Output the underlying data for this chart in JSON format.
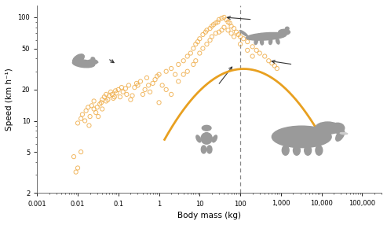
{
  "xlabel": "Body mass (kg)",
  "ylabel": "Speed (km h⁻¹)",
  "xlim": [
    0.001,
    300000
  ],
  "ylim": [
    2,
    130
  ],
  "dashed_x": 100,
  "curve_color": "#e8a020",
  "scatter_color": "#f0b050",
  "scatter_points": [
    [
      0.01,
      9.5
    ],
    [
      0.012,
      10.5
    ],
    [
      0.013,
      11.5
    ],
    [
      0.015,
      10.0
    ],
    [
      0.016,
      12.5
    ],
    [
      0.018,
      13.5
    ],
    [
      0.019,
      9.0
    ],
    [
      0.02,
      11.0
    ],
    [
      0.022,
      14.0
    ],
    [
      0.025,
      13.0
    ],
    [
      0.025,
      15.5
    ],
    [
      0.028,
      12.0
    ],
    [
      0.03,
      13.5
    ],
    [
      0.032,
      11.0
    ],
    [
      0.035,
      14.5
    ],
    [
      0.038,
      15.0
    ],
    [
      0.04,
      16.0
    ],
    [
      0.04,
      13.0
    ],
    [
      0.045,
      17.0
    ],
    [
      0.05,
      15.5
    ],
    [
      0.05,
      18.0
    ],
    [
      0.055,
      16.0
    ],
    [
      0.06,
      17.5
    ],
    [
      0.065,
      19.0
    ],
    [
      0.07,
      18.0
    ],
    [
      0.075,
      16.5
    ],
    [
      0.08,
      17.0
    ],
    [
      0.085,
      19.5
    ],
    [
      0.09,
      18.5
    ],
    [
      0.1,
      20.0
    ],
    [
      0.11,
      17.0
    ],
    [
      0.12,
      21.0
    ],
    [
      0.13,
      19.0
    ],
    [
      0.15,
      20.5
    ],
    [
      0.16,
      18.0
    ],
    [
      0.18,
      22.0
    ],
    [
      0.2,
      16.0
    ],
    [
      0.22,
      17.5
    ],
    [
      0.25,
      21.0
    ],
    [
      0.28,
      23.0
    ],
    [
      0.3,
      22.0
    ],
    [
      0.35,
      24.0
    ],
    [
      0.4,
      18.0
    ],
    [
      0.45,
      20.0
    ],
    [
      0.5,
      26.0
    ],
    [
      0.55,
      22.0
    ],
    [
      0.6,
      19.0
    ],
    [
      0.7,
      23.0
    ],
    [
      0.8,
      25.0
    ],
    [
      0.9,
      27.0
    ],
    [
      1.0,
      15.0
    ],
    [
      1.0,
      28.0
    ],
    [
      1.2,
      22.0
    ],
    [
      1.5,
      30.0
    ],
    [
      1.5,
      20.0
    ],
    [
      2.0,
      32.0
    ],
    [
      2.0,
      18.0
    ],
    [
      2.5,
      28.0
    ],
    [
      3.0,
      35.0
    ],
    [
      3.0,
      24.0
    ],
    [
      4.0,
      38.0
    ],
    [
      4.0,
      28.0
    ],
    [
      5.0,
      42.0
    ],
    [
      5.0,
      30.0
    ],
    [
      6.0,
      45.0
    ],
    [
      7.0,
      50.0
    ],
    [
      7.0,
      35.0
    ],
    [
      8.0,
      55.0
    ],
    [
      8.0,
      38.0
    ],
    [
      9.0,
      58.0
    ],
    [
      10.0,
      62.0
    ],
    [
      10.0,
      45.0
    ],
    [
      12.0,
      68.0
    ],
    [
      12.0,
      50.0
    ],
    [
      14.0,
      72.0
    ],
    [
      15.0,
      75.0
    ],
    [
      15.0,
      55.0
    ],
    [
      18.0,
      78.0
    ],
    [
      18.0,
      60.0
    ],
    [
      20.0,
      82.0
    ],
    [
      20.0,
      65.0
    ],
    [
      22.0,
      85.0
    ],
    [
      25.0,
      88.0
    ],
    [
      25.0,
      70.0
    ],
    [
      28.0,
      90.0
    ],
    [
      30.0,
      95.0
    ],
    [
      30.0,
      72.0
    ],
    [
      35.0,
      98.0
    ],
    [
      35.0,
      75.0
    ],
    [
      40.0,
      100.0
    ],
    [
      40.0,
      80.0
    ],
    [
      45.0,
      95.0
    ],
    [
      50.0,
      90.0
    ],
    [
      50.0,
      75.0
    ],
    [
      55.0,
      88.0
    ],
    [
      60.0,
      82.0
    ],
    [
      60.0,
      70.0
    ],
    [
      70.0,
      78.0
    ],
    [
      70.0,
      65.0
    ],
    [
      80.0,
      72.0
    ],
    [
      90.0,
      68.0
    ],
    [
      100.0,
      65.0
    ],
    [
      100.0,
      55.0
    ],
    [
      120.0,
      62.0
    ],
    [
      150.0,
      58.0
    ],
    [
      150.0,
      48.0
    ],
    [
      200.0,
      52.0
    ],
    [
      200.0,
      42.0
    ],
    [
      250.0,
      48.0
    ],
    [
      300.0,
      45.0
    ],
    [
      400.0,
      42.0
    ],
    [
      500.0,
      38.0
    ],
    [
      600.0,
      36.0
    ],
    [
      700.0,
      34.0
    ],
    [
      800.0,
      32.0
    ],
    [
      0.008,
      4.5
    ],
    [
      0.009,
      3.2
    ],
    [
      0.01,
      3.5
    ],
    [
      0.012,
      5.0
    ]
  ],
  "xtick_labels": [
    "0.001",
    "0.01",
    "0.1",
    "1",
    "10",
    "100",
    "1,000",
    "10,000",
    "100,000"
  ],
  "xtick_values": [
    0.001,
    0.01,
    0.1,
    1,
    10,
    100,
    1000,
    10000,
    100000
  ],
  "ytick_labels": [
    "2",
    "5",
    "10",
    "20",
    "50",
    "100"
  ],
  "ytick_values": [
    2,
    5,
    10,
    20,
    50,
    100
  ],
  "animal_color": "#9a9a9a",
  "arrow_color": "#333333"
}
